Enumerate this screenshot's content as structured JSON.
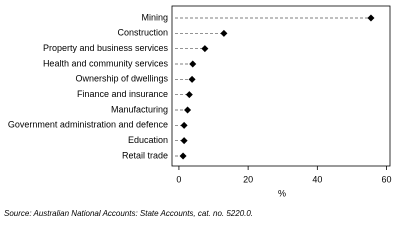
{
  "chart_data": {
    "type": "dot",
    "categories": [
      "Mining",
      "Construction",
      "Property and business services",
      "Health and community services",
      "Ownership of dwellings",
      "Finance and insurance",
      "Manufacturing",
      "Government administration and defence",
      "Education",
      "Retail trade"
    ],
    "values": [
      55.5,
      13,
      7.5,
      4,
      3.8,
      3,
      2.5,
      1.5,
      1.5,
      1.2
    ],
    "color": "#000000",
    "xlim": [
      -2,
      61
    ],
    "xticks": [
      0,
      20,
      40,
      60
    ],
    "xlabel": "%",
    "source": "Source: Australian National Accounts: State Accounts, cat. no. 5220.0."
  }
}
